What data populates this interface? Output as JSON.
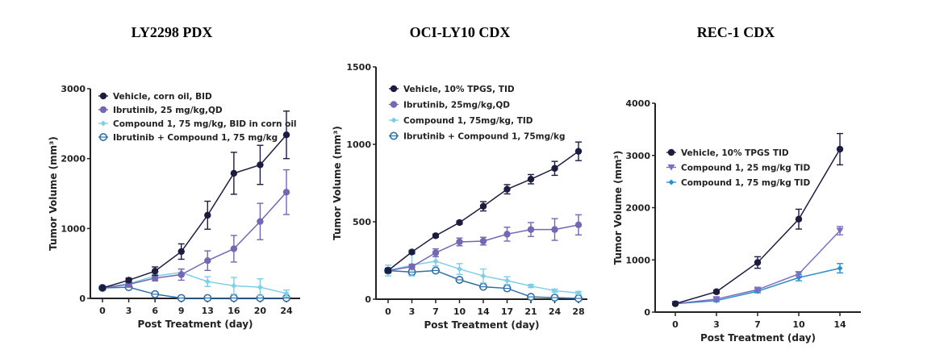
{
  "chart_data": [
    {
      "type": "line",
      "title": "LY2298 PDX",
      "xlabel": "Post Treatment (day)",
      "ylabel": "Tumor Volume (mm³)",
      "x": [
        0,
        3,
        6,
        9,
        13,
        16,
        20,
        24
      ],
      "xticks": [
        "0",
        "3",
        "6",
        "9",
        "13",
        "16",
        "20",
        "24"
      ],
      "ylim": [
        0,
        3000
      ],
      "yticks": [
        0,
        1000,
        2000,
        3000
      ],
      "legend_position": "top-left",
      "series": [
        {
          "name": "Vehicle, corn oil, BID",
          "color": "#1c1c40",
          "marker": "filled-circle",
          "values": [
            150,
            260,
            390,
            670,
            1190,
            1790,
            1910,
            2340
          ],
          "errors": [
            20,
            30,
            60,
            110,
            200,
            300,
            280,
            340
          ]
        },
        {
          "name": "Ibrutinib, 25 mg/kg,QD",
          "color": "#7467b3",
          "marker": "filled-circle",
          "values": [
            150,
            200,
            290,
            340,
            540,
            710,
            1100,
            1520
          ],
          "errors": [
            20,
            20,
            40,
            80,
            140,
            190,
            260,
            320
          ]
        },
        {
          "name": "Compound 1, 75 mg/kg, BID in corn oil",
          "color": "#7fcde6",
          "marker": "diamond",
          "values": [
            150,
            210,
            320,
            370,
            240,
            180,
            160,
            70
          ],
          "errors": [
            20,
            20,
            30,
            50,
            70,
            120,
            120,
            50
          ]
        },
        {
          "name": "Ibrutinib + Compound 1, 75 mg/kg",
          "color": "#2f6fa8",
          "marker": "open-circle",
          "values": [
            150,
            160,
            60,
            5,
            5,
            5,
            5,
            5
          ],
          "errors": [
            10,
            15,
            15,
            5,
            5,
            5,
            5,
            5
          ]
        }
      ]
    },
    {
      "type": "line",
      "title": "OCI-LY10 CDX",
      "xlabel": "Post Treatment (day)",
      "ylabel": "Tumor Volume (mm³)",
      "x": [
        0,
        3,
        7,
        10,
        14,
        17,
        21,
        24,
        28
      ],
      "xticks": [
        "0",
        "3",
        "7",
        "10",
        "14",
        "17",
        "21",
        "24",
        "28"
      ],
      "ylim": [
        0,
        1500
      ],
      "yticks": [
        0,
        500,
        1000,
        1500
      ],
      "legend_position": "top-left",
      "series": [
        {
          "name": "Vehicle, 10% TPGS, TID",
          "color": "#1c1c40",
          "marker": "filled-circle",
          "values": [
            185,
            305,
            410,
            495,
            600,
            710,
            775,
            845,
            955
          ],
          "errors": [
            15,
            10,
            10,
            10,
            30,
            30,
            30,
            45,
            60
          ]
        },
        {
          "name": "Ibrutinib, 25mg/kg,QD",
          "color": "#7467b3",
          "marker": "filled-circle",
          "values": [
            185,
            210,
            300,
            370,
            375,
            420,
            450,
            450,
            480
          ],
          "errors": [
            15,
            15,
            25,
            25,
            25,
            45,
            45,
            70,
            65
          ]
        },
        {
          "name": "Compound 1, 75mg/kg, TID",
          "color": "#7fcde6",
          "marker": "diamond",
          "values": [
            185,
            220,
            245,
            195,
            150,
            120,
            85,
            55,
            40
          ],
          "errors": [
            35,
            70,
            30,
            35,
            45,
            25,
            10,
            10,
            10
          ]
        },
        {
          "name": "Ibrutinib + Compound 1, 75mg/kg",
          "color": "#2f6fa8",
          "marker": "open-circle",
          "values": [
            185,
            175,
            185,
            125,
            80,
            70,
            15,
            10,
            5
          ],
          "errors": [
            10,
            15,
            10,
            10,
            10,
            10,
            10,
            5,
            5
          ]
        }
      ]
    },
    {
      "type": "line",
      "title": "REC-1 CDX",
      "xlabel": "Post Treatment (day)",
      "ylabel": "Tumor Volume (mm³)",
      "x": [
        0,
        3,
        7,
        10,
        14
      ],
      "xticks": [
        "0",
        "3",
        "7",
        "10",
        "14"
      ],
      "ylim": [
        0,
        4000
      ],
      "yticks": [
        0,
        1000,
        2000,
        3000,
        4000
      ],
      "legend_position": "center-left",
      "series": [
        {
          "name": "Vehicle, 10% TPGS TID",
          "color": "#1c1c40",
          "marker": "filled-circle",
          "values": [
            160,
            390,
            950,
            1780,
            3120
          ],
          "errors": [
            20,
            30,
            110,
            190,
            300
          ]
        },
        {
          "name": "Compound 1, 25 mg/kg TID",
          "color": "#7c6fc0",
          "marker": "triangle-down",
          "values": [
            160,
            250,
            430,
            730,
            1560
          ],
          "errors": [
            20,
            20,
            30,
            40,
            80
          ]
        },
        {
          "name": "Compound 1, 75 mg/kg TID",
          "color": "#2e8fc8",
          "marker": "diamond",
          "values": [
            160,
            220,
            400,
            660,
            840
          ],
          "errors": [
            20,
            20,
            30,
            60,
            90
          ]
        }
      ]
    }
  ]
}
